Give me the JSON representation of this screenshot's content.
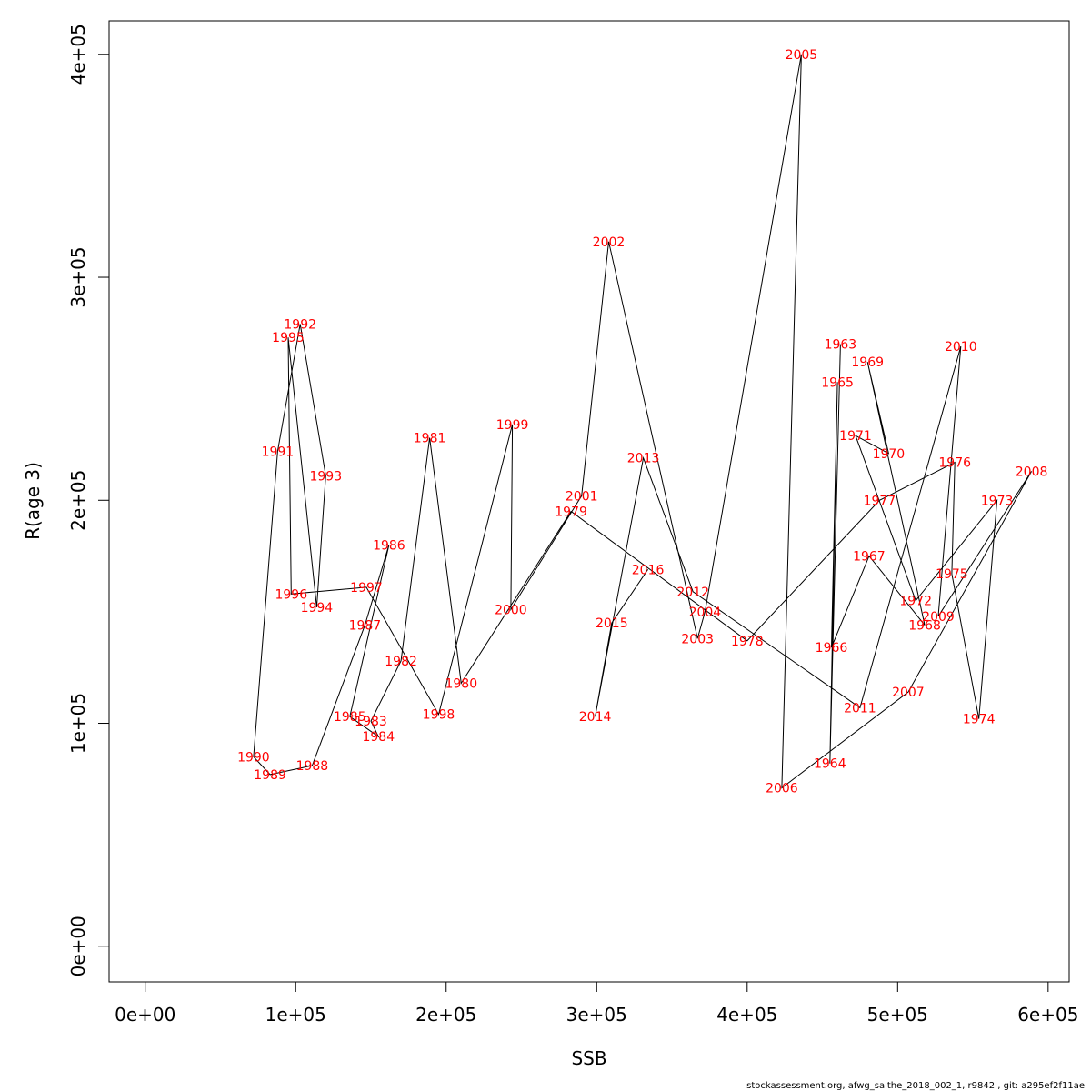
{
  "chart_data": {
    "type": "line",
    "xlabel": "SSB",
    "ylabel": "R(age 3)",
    "xlim": [
      -24000,
      614000
    ],
    "ylim": [
      -16000,
      415000
    ],
    "x_ticks": [
      {
        "value": 0,
        "label": "0e+00"
      },
      {
        "value": 100000,
        "label": "1e+05"
      },
      {
        "value": 200000,
        "label": "2e+05"
      },
      {
        "value": 300000,
        "label": "3e+05"
      },
      {
        "value": 400000,
        "label": "4e+05"
      },
      {
        "value": 500000,
        "label": "5e+05"
      },
      {
        "value": 600000,
        "label": "6e+05"
      }
    ],
    "y_ticks": [
      {
        "value": 0,
        "label": "0e+00"
      },
      {
        "value": 100000,
        "label": "1e+05"
      },
      {
        "value": 200000,
        "label": "2e+05"
      },
      {
        "value": 300000,
        "label": "3e+05"
      },
      {
        "value": 400000,
        "label": "4e+05"
      }
    ],
    "point_color": "#ff0000",
    "line_color": "#000000",
    "points": [
      {
        "label": "1963",
        "x": 462000,
        "y": 270000
      },
      {
        "label": "1964",
        "x": 455000,
        "y": 82000
      },
      {
        "label": "1965",
        "x": 460000,
        "y": 253000
      },
      {
        "label": "1966",
        "x": 456000,
        "y": 134000
      },
      {
        "label": "1967",
        "x": 481000,
        "y": 175000
      },
      {
        "label": "1968",
        "x": 518000,
        "y": 144000
      },
      {
        "label": "1969",
        "x": 480000,
        "y": 262000
      },
      {
        "label": "1970",
        "x": 494000,
        "y": 221000
      },
      {
        "label": "1971",
        "x": 472000,
        "y": 229000
      },
      {
        "label": "1972",
        "x": 512000,
        "y": 155000
      },
      {
        "label": "1973",
        "x": 566000,
        "y": 200000
      },
      {
        "label": "1974",
        "x": 554000,
        "y": 102000
      },
      {
        "label": "1975",
        "x": 536000,
        "y": 167000
      },
      {
        "label": "1976",
        "x": 538000,
        "y": 217000
      },
      {
        "label": "1977",
        "x": 488000,
        "y": 200000
      },
      {
        "label": "1978",
        "x": 400000,
        "y": 137000
      },
      {
        "label": "1979",
        "x": 283000,
        "y": 195000
      },
      {
        "label": "1980",
        "x": 210000,
        "y": 118000
      },
      {
        "label": "1981",
        "x": 189000,
        "y": 228000
      },
      {
        "label": "1982",
        "x": 170000,
        "y": 128000
      },
      {
        "label": "1983",
        "x": 150000,
        "y": 101000
      },
      {
        "label": "1984",
        "x": 155000,
        "y": 94000
      },
      {
        "label": "1985",
        "x": 136000,
        "y": 103000
      },
      {
        "label": "1986",
        "x": 162000,
        "y": 180000
      },
      {
        "label": "1987",
        "x": 146000,
        "y": 144000
      },
      {
        "label": "1988",
        "x": 111000,
        "y": 81000
      },
      {
        "label": "1989",
        "x": 83000,
        "y": 77000
      },
      {
        "label": "1990",
        "x": 72000,
        "y": 85000
      },
      {
        "label": "1991",
        "x": 88000,
        "y": 222000
      },
      {
        "label": "1992",
        "x": 103000,
        "y": 279000
      },
      {
        "label": "1993",
        "x": 120000,
        "y": 211000
      },
      {
        "label": "1994",
        "x": 114000,
        "y": 152000
      },
      {
        "label": "1995",
        "x": 95000,
        "y": 273000
      },
      {
        "label": "1996",
        "x": 97000,
        "y": 158000
      },
      {
        "label": "1997",
        "x": 147000,
        "y": 161000
      },
      {
        "label": "1998",
        "x": 195000,
        "y": 104000
      },
      {
        "label": "1999",
        "x": 244000,
        "y": 234000
      },
      {
        "label": "2000",
        "x": 243000,
        "y": 151000
      },
      {
        "label": "2001",
        "x": 290000,
        "y": 202000
      },
      {
        "label": "2002",
        "x": 308000,
        "y": 316000
      },
      {
        "label": "2003",
        "x": 367000,
        "y": 138000
      },
      {
        "label": "2004",
        "x": 372000,
        "y": 150000
      },
      {
        "label": "2005",
        "x": 436000,
        "y": 400000
      },
      {
        "label": "2006",
        "x": 423000,
        "y": 71000
      },
      {
        "label": "2007",
        "x": 507000,
        "y": 114000
      },
      {
        "label": "2008",
        "x": 589000,
        "y": 213000
      },
      {
        "label": "2009",
        "x": 527000,
        "y": 148000
      },
      {
        "label": "2010",
        "x": 542000,
        "y": 269000
      },
      {
        "label": "2011",
        "x": 475000,
        "y": 107000
      },
      {
        "label": "2012",
        "x": 364000,
        "y": 159000
      },
      {
        "label": "2013",
        "x": 331000,
        "y": 219000
      },
      {
        "label": "2014",
        "x": 299000,
        "y": 103000
      },
      {
        "label": "2015",
        "x": 310000,
        "y": 145000
      },
      {
        "label": "2016",
        "x": 334000,
        "y": 169000
      }
    ]
  },
  "footer": "stockassessment.org, afwg_saithe_2018_002_1, r9842 , git: a295ef2f11ae"
}
